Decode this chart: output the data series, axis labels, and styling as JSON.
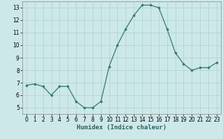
{
  "x": [
    0,
    1,
    2,
    3,
    4,
    5,
    6,
    7,
    8,
    9,
    10,
    11,
    12,
    13,
    14,
    15,
    16,
    17,
    18,
    19,
    20,
    21,
    22,
    23
  ],
  "y": [
    6.8,
    6.9,
    6.7,
    6.0,
    6.7,
    6.7,
    5.5,
    5.0,
    5.0,
    5.5,
    8.3,
    10.0,
    11.3,
    12.4,
    13.2,
    13.2,
    13.0,
    11.3,
    9.4,
    8.5,
    8.0,
    8.2,
    8.2,
    8.6
  ],
  "line_color": "#2e7d6e",
  "marker": "D",
  "marker_size": 1.8,
  "bg_color": "#cce8e8",
  "grid_color": "#b0d0d0",
  "xlabel": "Humidex (Indice chaleur)",
  "xlim": [
    -0.5,
    23.5
  ],
  "ylim": [
    4.5,
    13.5
  ],
  "yticks": [
    5,
    6,
    7,
    8,
    9,
    10,
    11,
    12,
    13
  ],
  "xticks": [
    0,
    1,
    2,
    3,
    4,
    5,
    6,
    7,
    8,
    9,
    10,
    11,
    12,
    13,
    14,
    15,
    16,
    17,
    18,
    19,
    20,
    21,
    22,
    23
  ],
  "tick_fontsize": 5.5,
  "label_fontsize": 6.5
}
